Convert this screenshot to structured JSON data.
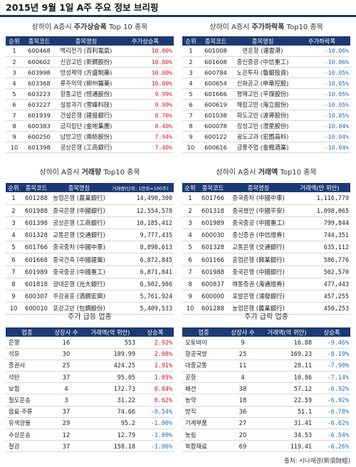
{
  "title": "2015년 9월 1일 A주 주요 정보 브리핑",
  "colors": {
    "header": "#1b3a73",
    "rise": "#e0141e",
    "fall": "#1f6fbe"
  },
  "s1": {
    "left": {
      "caption_pre": "상하이 A증시 ",
      "caption_bold": "주가상승폭",
      "caption_post": " Top 10 종목",
      "headers": [
        "순위",
        "종목코드",
        "종목명칭",
        "주가상승폭"
      ],
      "rows": [
        [
          "1",
          "600468",
          "백리전기 (百利電氣)",
          "10.00%"
        ],
        [
          "2",
          "600602",
          "신강고빈 (新鋼股份)",
          "10.00%"
        ],
        [
          "3",
          "603998",
          "방성제약 (方盛制藥)",
          "10.00%"
        ],
        [
          "4",
          "603368",
          "류주의약 (柳州醫藥)",
          "10.00%"
        ],
        [
          "5",
          "603223",
          "항통고빈 (恒通股份)",
          "9.99%"
        ],
        [
          "6",
          "603227",
          "설봉과기 (雪峰科技)",
          "9.99%"
        ],
        [
          "7",
          "601939",
          "건설은행 (建設銀行)",
          "8.70%"
        ],
        [
          "8",
          "600383",
          "금지집단 (金地集團)",
          "8.40%"
        ],
        [
          "9",
          "600250",
          "남방고빈 (南紡股份)",
          "7.94%"
        ],
        [
          "10",
          "601398",
          "공상은행 (工商銀行)",
          "7.40%"
        ]
      ]
    },
    "right": {
      "caption_pre": "상하이 A증시 ",
      "caption_bold": "주가하락폭",
      "caption_post": " Top10 종목",
      "headers": [
        "순위",
        "종목코드",
        "종목명칭",
        "주가하락폭"
      ],
      "rows": [
        [
          "1",
          "601008",
          "연운항 (連雲港)",
          "-10.06%"
        ],
        [
          "2",
          "601608",
          "중신중공 (中信重工)",
          "-10.06%"
        ],
        [
          "3",
          "600784",
          "노은투자 (魯銀投資)",
          "-10.05%"
        ],
        [
          "4",
          "600654",
          "신화공고 (申華控股)",
          "-10.05%"
        ],
        [
          "5",
          "601666",
          "평매고빈 (平煤股份)",
          "-10.05%"
        ],
        [
          "6",
          "600619",
          "해립고빈 (海立股份)",
          "-10.05%"
        ],
        [
          "7",
          "601038",
          "파도고빈 (波導股份)",
          "-10.05%"
        ],
        [
          "8",
          "600078",
          "징성고빈 (澄星股份)",
          "-10.04%"
        ],
        [
          "9",
          "600122",
          "굉도고과 (宏圖高科)",
          "-10.04%"
        ],
        [
          "10",
          "600616",
          "금풍주업 (金楓酒業)",
          "-10.04%"
        ]
      ]
    }
  },
  "s2": {
    "left": {
      "caption_pre": "상하이 A증시 ",
      "caption_bold": "거래량",
      "caption_post": " Top10 종목",
      "headers": [
        "순위",
        "종목코드",
        "종목명칭",
        "거래량(단위: 1만위=100주)"
      ],
      "rows": [
        [
          "1",
          "601288",
          "농업은행 (農業銀行)",
          "14,490,300"
        ],
        [
          "2",
          "601988",
          "중국은행 (中國銀行)",
          "12,554,578"
        ],
        [
          "3",
          "601398",
          "공상은행 (工商銀行)",
          "10,185,412"
        ],
        [
          "4",
          "601328",
          "교통은행 (交通銀行)",
          "9,777,435"
        ],
        [
          "5",
          "601766",
          "중국중차 (中國中車)",
          "8,898,613"
        ],
        [
          "6",
          "601668",
          "중국건축 (中國建築)",
          "6,872,845"
        ],
        [
          "7",
          "601989",
          "중국중공 (中國重工)",
          "6,871,841"
        ],
        [
          "8",
          "601818",
          "광대은행 (光大銀行)",
          "6,502,986"
        ],
        [
          "9",
          "600307",
          "주강굉흥 (酒鋼宏興)",
          "5,761,924"
        ],
        [
          "10",
          "600010",
          "포강고빈 (包鋼股份)",
          "5,409,533"
        ]
      ]
    },
    "right": {
      "caption_pre": "상하이 A증시 ",
      "caption_bold": "거래액",
      "caption_post": " Top10 종목",
      "headers": [
        "순위",
        "종목코드",
        "종목명칭",
        "거래액(만 위안)"
      ],
      "rows": [
        [
          "1",
          "601766",
          "중국중차 (中國中車)",
          "1,116,779"
        ],
        [
          "2",
          "601318",
          "중국평안 (中國平安)",
          "1,098,065"
        ],
        [
          "3",
          "601989",
          "중국중공 (中國重工)",
          "799,844"
        ],
        [
          "4",
          "600030",
          "중신증권 (中信證券)",
          "744,351"
        ],
        [
          "5",
          "601328",
          "교통은행 (交通銀行)",
          "635,112"
        ],
        [
          "6",
          "601166",
          "흥업은행 (興業銀行)",
          "586,776"
        ],
        [
          "7",
          "601988",
          "중국은행 (中國銀行)",
          "502,570"
        ],
        [
          "8",
          "600837",
          "해통증권 (海通證券)",
          "477,443"
        ],
        [
          "9",
          "600000",
          "포발은행 (浦發銀行)",
          "457,255"
        ],
        [
          "10",
          "601288",
          "농업은행 (農業銀行)",
          "450,253"
        ]
      ]
    }
  },
  "s3": {
    "left": {
      "caption": "주가 급등 업종",
      "headers": [
        "업종",
        "상장사 수",
        "거래액(억 위안)",
        "상승폭"
      ],
      "rows": [
        [
          "은행",
          "16",
          "553",
          "2.92%"
        ],
        [
          "석유",
          "30",
          "109.99",
          "2.08%"
        ],
        [
          "증권사",
          "25",
          "424.25",
          "1.91%"
        ],
        [
          "석탄",
          "37",
          "95.05",
          "1.05%"
        ],
        [
          "보험",
          "4",
          "172.73",
          "0.84%"
        ],
        [
          "철도운송",
          "3",
          "31.22",
          "0.62%"
        ],
        [
          "음료·주류",
          "37",
          "74.66",
          "-0.54%"
        ],
        [
          "유색광물",
          "29",
          "95.2",
          "-1.00%"
        ],
        [
          "수상운송",
          "12",
          "12.79",
          "-1.00%"
        ],
        [
          "철강",
          "37",
          "158.18",
          "-1.06%"
        ]
      ]
    },
    "right": {
      "caption": "주가 급락 업종",
      "headers": [
        "업종",
        "상장사 수",
        "거래액(억 위안)",
        "상승폭"
      ],
      "rows": [
        [
          "오토바이",
          "9",
          "16.88",
          "-9.46%"
        ],
        [
          "항공국방",
          "25",
          "169.23",
          "-8.19%"
        ],
        [
          "대중교통",
          "11",
          "28.11",
          "-7.90%"
        ],
        [
          "공항",
          "4",
          "10.86",
          "-7.14%"
        ],
        [
          "패션",
          "38",
          "57.12",
          "-6.92%"
        ],
        [
          "농약",
          "18",
          "22.59",
          "-6.92%"
        ],
        [
          "방직",
          "36",
          "51.1",
          "-6.78%"
        ],
        [
          "기계부품",
          "27",
          "31.41",
          "-6.62%"
        ],
        [
          "농림",
          "20",
          "34.53",
          "-6.54%"
        ],
        [
          "복합재료",
          "69",
          "119.41",
          "-6.26%"
        ]
      ]
    }
  },
  "footer": "출처: 시나재경(新浪財經)"
}
